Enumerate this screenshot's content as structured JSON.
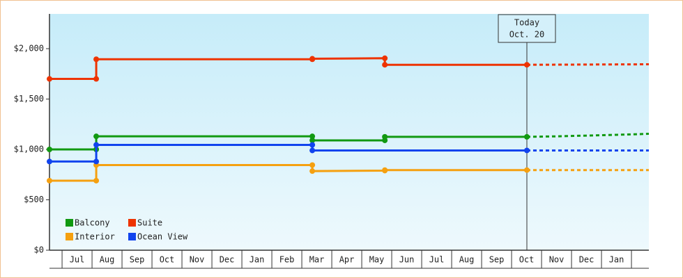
{
  "chart_data": {
    "type": "step-line",
    "xlim": [
      -0.42,
      19.58
    ],
    "ylim": [
      0,
      2345
    ],
    "yticks": [
      {
        "value": 0,
        "label": "$0"
      },
      {
        "value": 500,
        "label": "$500"
      },
      {
        "value": 1000,
        "label": "$1,000"
      },
      {
        "value": 1500,
        "label": "$1,500"
      },
      {
        "value": 2000,
        "label": "$2,000"
      }
    ],
    "xticks": [
      {
        "value": 0,
        "label": "Jul"
      },
      {
        "value": 1,
        "label": "Aug"
      },
      {
        "value": 2,
        "label": "Sep"
      },
      {
        "value": 3,
        "label": "Oct"
      },
      {
        "value": 4,
        "label": "Nov"
      },
      {
        "value": 5,
        "label": "Dec"
      },
      {
        "value": 6,
        "label": "Jan"
      },
      {
        "value": 7,
        "label": "Feb"
      },
      {
        "value": 8,
        "label": "Mar"
      },
      {
        "value": 9,
        "label": "Apr"
      },
      {
        "value": 10,
        "label": "May"
      },
      {
        "value": 11,
        "label": "Jun"
      },
      {
        "value": 12,
        "label": "Jul"
      },
      {
        "value": 13,
        "label": "Aug"
      },
      {
        "value": 14,
        "label": "Sep"
      },
      {
        "value": 15,
        "label": "Oct"
      },
      {
        "value": 16,
        "label": "Nov"
      },
      {
        "value": 17,
        "label": "Dec"
      },
      {
        "value": 18,
        "label": "Jan"
      }
    ],
    "annotation": {
      "lines": [
        "Today",
        "Oct. 20"
      ],
      "x": 15.51
    },
    "series": [
      {
        "name": "Balcony",
        "color": "#119911",
        "x": [
          -0.42,
          1.14,
          1.14,
          8.35,
          8.35,
          10.77,
          10.77,
          15.51
        ],
        "values": [
          1000,
          1000,
          1130,
          1130,
          1090,
          1090,
          1125,
          1125
        ],
        "forecast_x": [
          15.51,
          16.5,
          18.5,
          19.58
        ],
        "forecast_values": [
          1125,
          1130,
          1145,
          1155
        ]
      },
      {
        "name": "Suite",
        "color": "#ee3300",
        "x": [
          -0.42,
          1.14,
          1.14,
          8.35,
          8.35,
          10.77,
          10.77,
          15.51
        ],
        "values": [
          1700,
          1700,
          1895,
          1895,
          1900,
          1905,
          1840,
          1840
        ],
        "forecast_x": [
          15.51,
          19.58
        ],
        "forecast_values": [
          1840,
          1845
        ]
      },
      {
        "name": "Interior",
        "color": "#f5a010",
        "x": [
          -0.42,
          1.14,
          1.14,
          8.35,
          8.35,
          10.77,
          10.77,
          15.51
        ],
        "values": [
          690,
          690,
          845,
          845,
          785,
          790,
          795,
          795
        ],
        "forecast_x": [
          15.51,
          19.58
        ],
        "forecast_values": [
          795,
          795
        ]
      },
      {
        "name": "Ocean View",
        "color": "#1144ee",
        "x": [
          -0.42,
          1.14,
          1.14,
          8.35,
          8.35,
          15.51
        ],
        "values": [
          880,
          880,
          1045,
          1045,
          990,
          990
        ],
        "forecast_x": [
          15.51,
          19.58
        ],
        "forecast_values": [
          990,
          990
        ]
      }
    ]
  }
}
